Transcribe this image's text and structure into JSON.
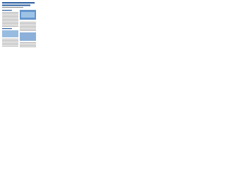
{
  "document": {
    "columns": 2
  }
}
